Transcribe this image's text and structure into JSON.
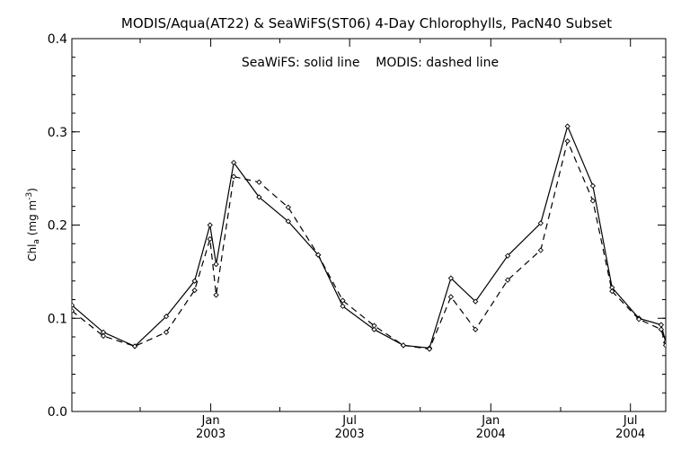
{
  "chart_data": {
    "type": "line",
    "title": "MODIS/Aqua(AT22) & SeaWiFS(ST06) 4-Day Chlorophylls, PacN40 Subset",
    "annotation": "SeaWiFS: solid line    MODIS: dashed line",
    "ylabel": "Chl_a (mg m^-3)",
    "ylabel_parts": {
      "main": "Chl",
      "sub": "a",
      "unit_open": " (mg m",
      "sup": "-3",
      "unit_close": ")"
    },
    "xlabel": "",
    "ylim": [
      0.0,
      0.4
    ],
    "yticks": [
      {
        "value": 0.0,
        "label": "0.0"
      },
      {
        "value": 0.1,
        "label": "0.1"
      },
      {
        "value": 0.2,
        "label": "0.2"
      },
      {
        "value": 0.3,
        "label": "0.3"
      },
      {
        "value": 0.4,
        "label": "0.4"
      }
    ],
    "xlim": [
      "2002-07-04",
      "2004-08-16"
    ],
    "xticks": [
      {
        "date": "2003-01-01",
        "month": "Jan",
        "year": "2003"
      },
      {
        "date": "2003-07-01",
        "month": "Jul",
        "year": "2003"
      },
      {
        "date": "2004-01-01",
        "month": "Jan",
        "year": "2004"
      },
      {
        "date": "2004-07-01",
        "month": "Jul",
        "year": "2004"
      }
    ],
    "x_minor_ticks": [
      "2002-10-01",
      "2003-04-01",
      "2003-10-01",
      "2004-04-01"
    ],
    "grid": false,
    "series": [
      {
        "name": "SeaWiFS",
        "style": "solid",
        "points": [
          [
            "2002-07-04",
            0.114
          ],
          [
            "2002-08-14",
            0.085
          ],
          [
            "2002-09-24",
            0.07
          ],
          [
            "2002-11-04",
            0.102
          ],
          [
            "2002-12-11",
            0.14
          ],
          [
            "2002-12-31",
            0.2
          ],
          [
            "2003-01-08",
            0.158
          ],
          [
            "2003-01-31",
            0.267
          ],
          [
            "2003-03-05",
            0.23
          ],
          [
            "2003-04-12",
            0.204
          ],
          [
            "2003-05-21",
            0.168
          ],
          [
            "2003-06-22",
            0.113
          ],
          [
            "2003-08-02",
            0.088
          ],
          [
            "2003-09-09",
            0.071
          ],
          [
            "2003-10-13",
            0.068
          ],
          [
            "2003-11-10",
            0.143
          ],
          [
            "2003-12-12",
            0.118
          ],
          [
            "2004-01-23",
            0.167
          ],
          [
            "2004-03-06",
            0.202
          ],
          [
            "2004-04-10",
            0.306
          ],
          [
            "2004-05-13",
            0.242
          ],
          [
            "2004-06-07",
            0.133
          ],
          [
            "2004-07-12",
            0.1
          ],
          [
            "2004-08-10",
            0.093
          ],
          [
            "2004-08-16",
            0.074
          ]
        ]
      },
      {
        "name": "MODIS",
        "style": "dashed",
        "points": [
          [
            "2002-07-04",
            0.108
          ],
          [
            "2002-08-14",
            0.081
          ],
          [
            "2002-09-24",
            0.07
          ],
          [
            "2002-11-04",
            0.085
          ],
          [
            "2002-12-11",
            0.13
          ],
          [
            "2002-12-31",
            0.185
          ],
          [
            "2003-01-08",
            0.125
          ],
          [
            "2003-01-31",
            0.252
          ],
          [
            "2003-03-05",
            0.246
          ],
          [
            "2003-04-12",
            0.219
          ],
          [
            "2003-05-21",
            0.168
          ],
          [
            "2003-06-22",
            0.119
          ],
          [
            "2003-08-02",
            0.092
          ],
          [
            "2003-09-09",
            0.071
          ],
          [
            "2003-10-13",
            0.067
          ],
          [
            "2003-11-10",
            0.123
          ],
          [
            "2003-12-12",
            0.088
          ],
          [
            "2004-01-23",
            0.141
          ],
          [
            "2004-03-06",
            0.173
          ],
          [
            "2004-04-10",
            0.29
          ],
          [
            "2004-05-13",
            0.226
          ],
          [
            "2004-06-07",
            0.129
          ],
          [
            "2004-07-12",
            0.099
          ],
          [
            "2004-08-10",
            0.088
          ],
          [
            "2004-08-16",
            0.071
          ]
        ]
      }
    ]
  }
}
